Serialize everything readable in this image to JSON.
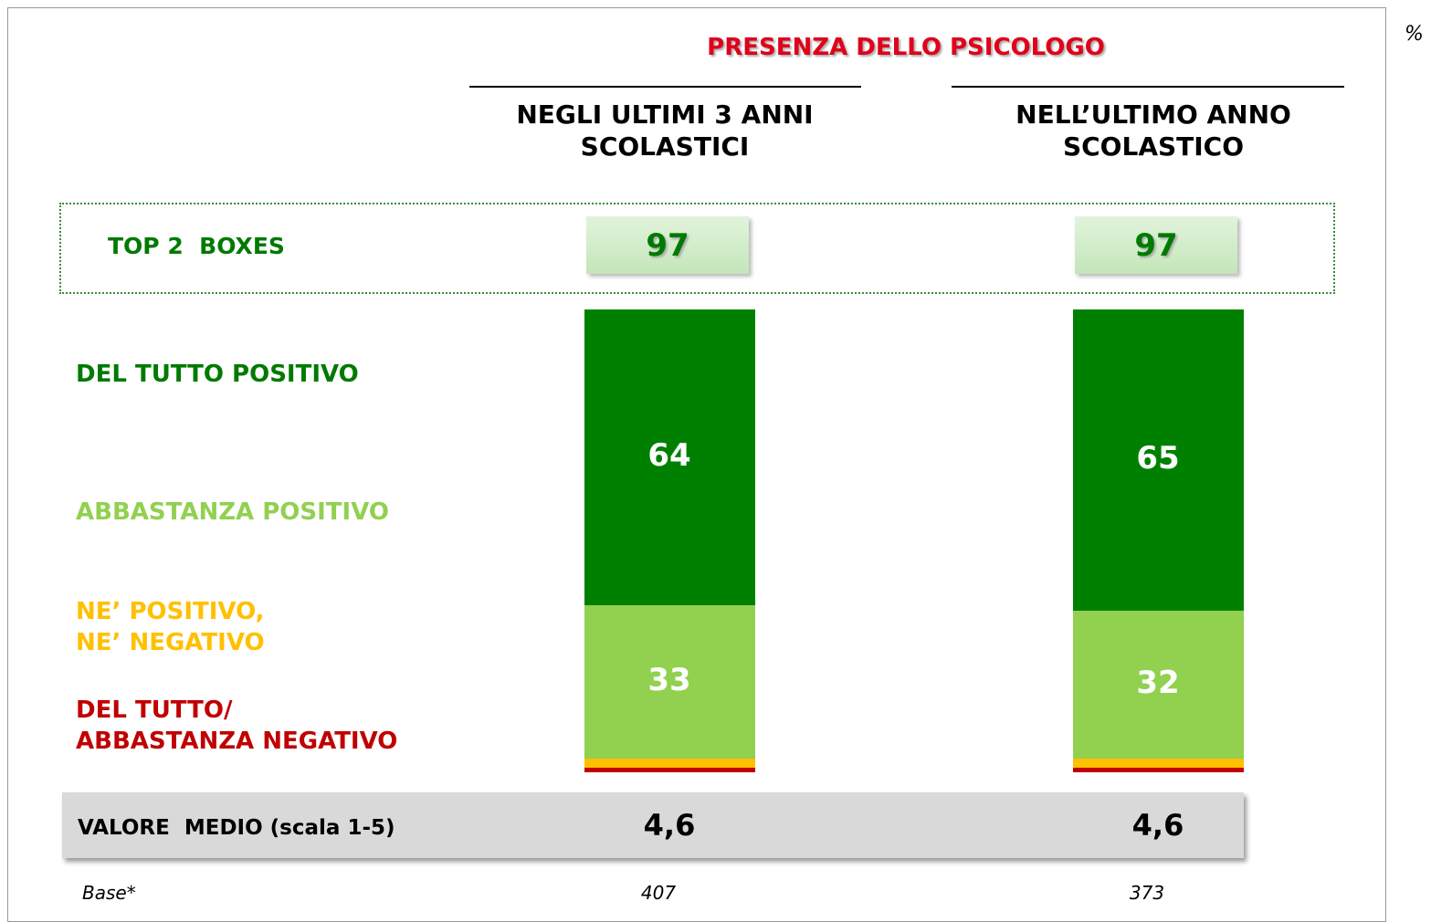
{
  "chart_data": {
    "type": "stacked_bar",
    "title": "PRESENZA DELLO PSICOLOGO",
    "unit_note": "%",
    "categories": [
      "NEGLI ULTIMI 3 ANNI SCOLASTICI",
      "NELL’ULTIMO ANNO SCOLASTICO"
    ],
    "series": [
      {
        "name": "DEL TUTTO/\nABBASTANZA NEGATIVO",
        "color": "#c00000",
        "values": [
          1,
          1
        ],
        "value_labels": [
          null,
          null
        ]
      },
      {
        "name": "NE’ POSITIVO,\nNE’ NEGATIVO",
        "color": "#ffc000",
        "values": [
          2,
          2
        ],
        "value_labels": [
          null,
          null
        ]
      },
      {
        "name": "ABBASTANZA POSITIVO",
        "color": "#92d050",
        "values": [
          33,
          32
        ]
      },
      {
        "name": "DEL TUTTO POSITIVO",
        "color": "#008000",
        "values": [
          64,
          65
        ]
      }
    ],
    "top2": {
      "label": "TOP 2  BOXES",
      "values": [
        97,
        97
      ]
    },
    "mean": {
      "label": "VALORE  MEDIO (scala 1-5)",
      "values": [
        4.6,
        4.6
      ],
      "value_labels": [
        "4,6",
        "4,6"
      ]
    },
    "base": {
      "label": "Base*",
      "values": [
        407,
        373
      ]
    }
  }
}
